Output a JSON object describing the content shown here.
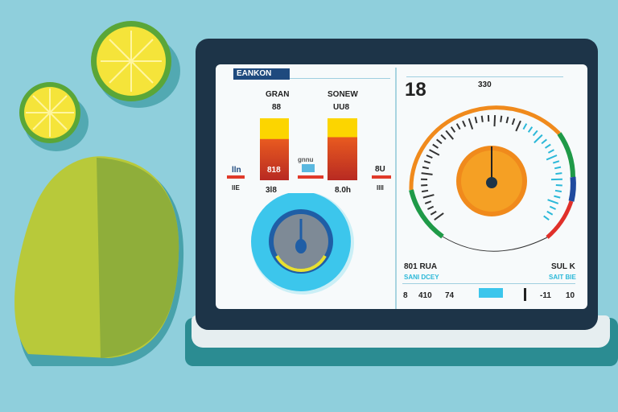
{
  "screen": {
    "header_label": "EANKON",
    "left_panel": {
      "bar1_title": "GRAN",
      "bar1_value": "88",
      "bar1_inner": "818",
      "bar1_bottom": "3l8",
      "bar2_title": "SONEW",
      "bar2_value": "UU8",
      "bar2_bottom": "8.0h",
      "side_left_value": "lln",
      "side_left_bottom": "llE",
      "side_mid_label": "gnnu",
      "side_right_value": "8U",
      "side_right_bottom": "llll"
    },
    "right_panel": {
      "big_number": "18",
      "top_value": "330",
      "bottom_left_value": "801 RUA",
      "bottom_left_sub": "SANI DCEY",
      "bottom_right_value": "SUL K",
      "bottom_right_sub": "SAIT BIE",
      "footer_values": [
        "8",
        "410",
        "74",
        "-11",
        "10"
      ]
    }
  },
  "colors": {
    "background": "#8fcfdc",
    "tablet": "#1d3448",
    "gauge_orange": "#f08a1c",
    "dial_cyan": "#3cc6ec",
    "lime": "#a9c23a"
  }
}
